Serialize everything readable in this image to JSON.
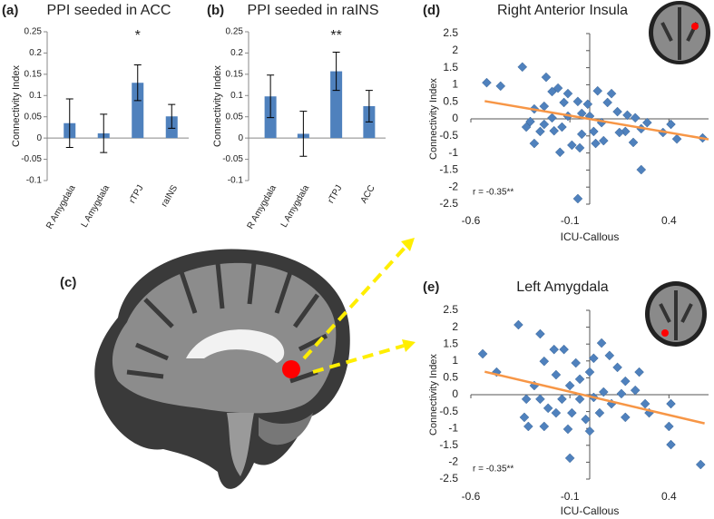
{
  "chart_data": [
    {
      "type": "bar",
      "label": "(a)",
      "title": "PPI seeded in ACC",
      "y_label": "Connectivity Index",
      "categories": [
        "R Amygdala",
        "L Amygdala",
        "rTPJ",
        "raINS"
      ],
      "values": [
        0.035,
        0.011,
        0.13,
        0.051
      ],
      "errors": [
        0.057,
        0.045,
        0.042,
        0.028
      ],
      "significance": [
        null,
        null,
        "*",
        null
      ],
      "color": "#4f81bd",
      "ylim": [
        -0.1,
        0.25
      ],
      "yticks": [
        -0.1,
        -0.05,
        0,
        0.05,
        0.1,
        0.15,
        0.2,
        0.25
      ],
      "grid": false
    },
    {
      "type": "bar",
      "label": "(b)",
      "title": "PPI seeded in raINS",
      "y_label": "Connectivity Index",
      "categories": [
        "R Amygdala",
        "L Amygdala",
        "rTPJ",
        "ACC"
      ],
      "values": [
        0.098,
        0.01,
        0.157,
        0.075
      ],
      "errors": [
        0.05,
        0.053,
        0.045,
        0.037
      ],
      "significance": [
        null,
        null,
        "**",
        null
      ],
      "color": "#4f81bd",
      "ylim": [
        -0.1,
        0.25
      ],
      "yticks": [
        -0.1,
        -0.05,
        0,
        0.05,
        0.1,
        0.15,
        0.2,
        0.25
      ],
      "grid": false
    },
    {
      "type": "scatter",
      "label": "(d)",
      "title": "Right Anterior Insula",
      "x_label": "ICU-Callous",
      "y_label": "Connectivity Index",
      "annotation": "r = -0.35**",
      "color": "#4f81bd",
      "x": [
        -0.52,
        -0.45,
        -0.34,
        -0.22,
        -0.19,
        -0.16,
        -0.13,
        -0.11,
        -0.06,
        -0.23,
        -0.28,
        -0.3,
        -0.32,
        -0.23,
        -0.19,
        -0.11,
        -0.04,
        -0.01,
        0.04,
        0.09,
        0.11,
        0.14,
        0.19,
        0.23,
        0.26,
        0.29,
        0.37,
        0.41,
        0.44,
        0.57,
        0.26,
        -0.06,
        0.02,
        0.07,
        -0.04,
        -0.09,
        -0.18,
        -0.28,
        -0.15,
        -0.05,
        0.03,
        0.18,
        0.22,
        0.15,
        0.0,
        0.06,
        -0.14,
        -0.25
      ],
      "values": [
        1.06,
        0.96,
        1.52,
        1.22,
        0.8,
        0.9,
        0.48,
        0.74,
        0.51,
        0.37,
        0.29,
        -0.08,
        -0.24,
        -0.16,
        0.03,
        0.08,
        0.16,
        0.43,
        0.82,
        0.48,
        0.74,
        0.21,
        0.11,
        0.03,
        -0.29,
        -0.11,
        -0.4,
        -0.16,
        -0.59,
        -0.56,
        -1.49,
        -2.34,
        -0.37,
        -0.64,
        -0.45,
        -0.77,
        -0.35,
        -0.72,
        -0.98,
        -0.85,
        -0.72,
        -0.37,
        -0.69,
        -0.4,
        0.08,
        -0.11,
        -0.24,
        -0.37
      ],
      "trendline": {
        "x": [
          -0.53,
          0.6
        ],
        "values": [
          0.52,
          -0.6
        ],
        "color": "#f79646"
      },
      "xlim": [
        -0.6,
        0.6
      ],
      "xticks": [
        -0.6,
        -0.1,
        0.4
      ],
      "ylim": [
        -2.5,
        2.5
      ],
      "yticks": [
        -2.5,
        -2,
        -1.5,
        -1,
        -0.5,
        0,
        0.5,
        1,
        1.5,
        2,
        2.5
      ],
      "grid": false
    },
    {
      "type": "scatter",
      "label": "(e)",
      "title": "Left Amygdala",
      "x_label": "ICU-Callous",
      "y_label": "Connectivity Index",
      "annotation": "r = -0.35**",
      "color": "#4f81bd",
      "x": [
        -0.54,
        -0.47,
        -0.36,
        -0.25,
        -0.23,
        -0.18,
        -0.17,
        -0.13,
        -0.07,
        -0.28,
        -0.32,
        -0.33,
        -0.31,
        -0.23,
        -0.21,
        -0.14,
        -0.1,
        -0.05,
        0.0,
        0.02,
        0.06,
        0.1,
        0.14,
        0.18,
        0.23,
        0.28,
        0.3,
        0.41,
        0.4,
        0.41,
        0.56,
        -0.1,
        -0.11,
        -0.02,
        0.05,
        0.11,
        0.18,
        -0.05,
        0.02,
        -0.17,
        -0.25,
        0.07,
        0.16,
        -0.09,
        0.25,
        0.0
      ],
      "values": [
        1.21,
        0.67,
        2.07,
        1.8,
        0.99,
        1.34,
        0.59,
        1.34,
        0.94,
        0.27,
        -0.13,
        -0.67,
        -0.94,
        -0.94,
        -0.4,
        -0.13,
        0.27,
        0.46,
        0.67,
        1.08,
        1.53,
        1.16,
        0.81,
        0.4,
        0.13,
        -0.27,
        -0.54,
        -0.27,
        -0.94,
        -1.48,
        -2.07,
        -1.88,
        -1.02,
        -0.73,
        -0.54,
        -0.27,
        -0.67,
        -0.13,
        -0.08,
        -0.54,
        -0.13,
        0.08,
        0.03,
        -0.54,
        0.67,
        -1.08
      ],
      "trendline": {
        "x": [
          -0.53,
          0.58
        ],
        "values": [
          0.68,
          -0.85
        ],
        "color": "#f79646"
      },
      "xlim": [
        -0.6,
        0.6
      ],
      "xticks": [
        -0.6,
        -0.1,
        0.4
      ],
      "ylim": [
        -2.5,
        2.5
      ],
      "yticks": [
        -2.5,
        -2,
        -1.5,
        -1,
        -0.5,
        0,
        0.5,
        1,
        1.5,
        2,
        2.5
      ],
      "grid": false
    }
  ],
  "panel_c": {
    "label": "(c)"
  }
}
